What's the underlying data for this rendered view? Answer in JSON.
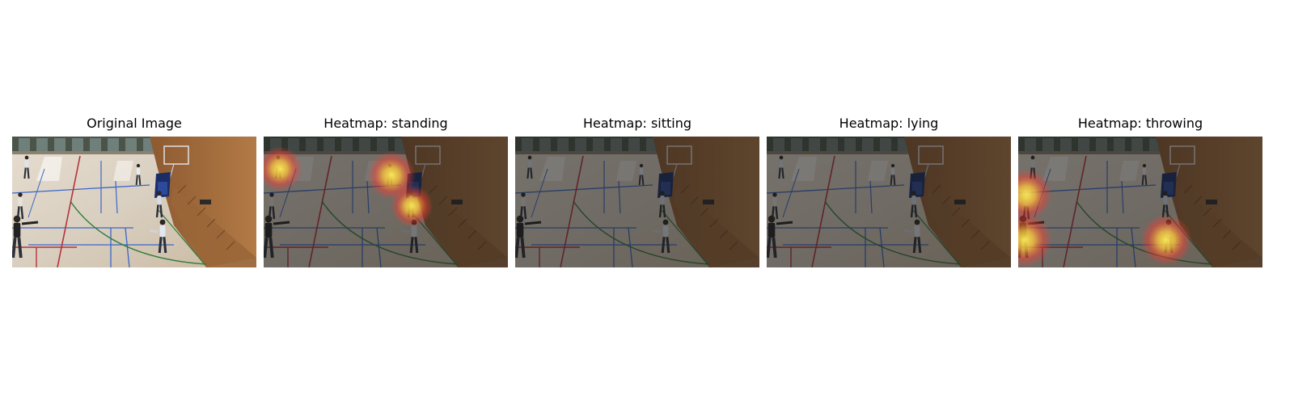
{
  "panels": [
    {
      "title": "Original Image",
      "dimmed": false,
      "heat": []
    },
    {
      "title": "Heatmap: standing",
      "dimmed": true,
      "heat": [
        "spot-top-left-person",
        "spot-center-person",
        "spot-below-hoop-person"
      ]
    },
    {
      "title": "Heatmap: sitting",
      "dimmed": true,
      "heat": []
    },
    {
      "title": "Heatmap: lying",
      "dimmed": true,
      "heat": []
    },
    {
      "title": "Heatmap: throwing",
      "dimmed": true,
      "heat": [
        "spot-left-edge-person",
        "spot-lower-left",
        "spot-lower-right-person"
      ]
    }
  ],
  "colors": {
    "floor": "#d9cfc0",
    "wall_wood": "#b27a45",
    "court_blue": "#3a66c8",
    "court_red": "#b5323a",
    "court_green": "#2f7d3a",
    "heat_core": "#fff15a",
    "heat_mid": "#ff3b2f"
  }
}
